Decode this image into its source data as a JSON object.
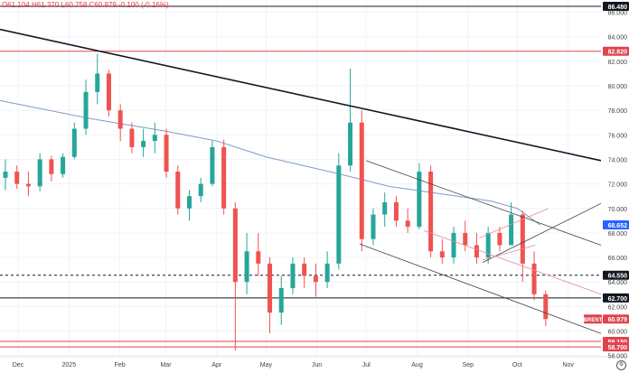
{
  "header": {
    "open_label": "O",
    "open": "61.104",
    "high_label": "H",
    "high": "61.370",
    "low_label": "L",
    "low": "60.758",
    "close_label": "C",
    "close": "60.979",
    "change": "-0.100 (-0.16%)"
  },
  "icons": {
    "settings": "gear-icon"
  },
  "colors": {
    "up": "#26a69a",
    "down": "#ef5350",
    "level_red": "#e0434f",
    "level_black": "#131722",
    "ma": "#7e9cc8",
    "trend_pink": "#e58a93",
    "channel": "#404040"
  },
  "chart_data": {
    "type": "candlestick",
    "symbol": "BRENT",
    "last_price": "60.979",
    "y_range": [
      57.9,
      87.0
    ],
    "y_ticks": [
      "58.000",
      "60.000",
      "62.000",
      "64.000",
      "66.000",
      "68.000",
      "70.000",
      "72.000",
      "74.000",
      "76.000",
      "78.000",
      "80.000",
      "82.000",
      "84.000",
      "86.000"
    ],
    "x_range": [
      "2024-11-20",
      "2025-11-21"
    ],
    "x_ticks": [
      {
        "label": "Dec",
        "date": "2024-12-01"
      },
      {
        "label": "2025",
        "date": "2025-01-01"
      },
      {
        "label": "Feb",
        "date": "2025-02-01"
      },
      {
        "label": "Mar",
        "date": "2025-03-01"
      },
      {
        "label": "Apr",
        "date": "2025-04-01"
      },
      {
        "label": "May",
        "date": "2025-05-01"
      },
      {
        "label": "Jun",
        "date": "2025-06-01"
      },
      {
        "label": "Jul",
        "date": "2025-07-01"
      },
      {
        "label": "Aug",
        "date": "2025-08-01"
      },
      {
        "label": "Sep",
        "date": "2025-09-01"
      },
      {
        "label": "Oct",
        "date": "2025-10-01"
      },
      {
        "label": "Nov",
        "date": "2025-11-01"
      }
    ],
    "grid": true,
    "candles": [
      [
        "2024-11-20",
        72.5,
        74,
        71.5,
        73
      ],
      [
        "2024-11-27",
        73,
        73.5,
        71.6,
        72
      ],
      [
        "2024-12-04",
        72,
        73,
        71,
        71.8
      ],
      [
        "2024-12-11",
        71.8,
        74.5,
        71.4,
        74
      ],
      [
        "2024-12-18",
        74,
        74.3,
        72.2,
        72.8
      ],
      [
        "2024-12-25",
        72.8,
        74.5,
        72.5,
        74.2
      ],
      [
        "2025-01-01",
        74.2,
        77,
        74,
        76.5
      ],
      [
        "2025-01-08",
        76.5,
        80.5,
        76,
        79.5
      ],
      [
        "2025-01-15",
        79.5,
        82.6,
        78.5,
        81
      ],
      [
        "2025-01-22",
        81,
        81.3,
        77.5,
        78
      ],
      [
        "2025-01-29",
        78,
        78.5,
        75.5,
        76.5
      ],
      [
        "2025-02-05",
        76.5,
        77,
        74.5,
        75
      ],
      [
        "2025-02-12",
        75,
        76.5,
        74.2,
        75.5
      ],
      [
        "2025-02-19",
        75.5,
        77,
        74.5,
        76
      ],
      [
        "2025-02-26",
        76,
        76.5,
        72.5,
        73
      ],
      [
        "2025-03-05",
        73,
        73.5,
        69.5,
        70
      ],
      [
        "2025-03-12",
        70,
        71.5,
        69,
        71
      ],
      [
        "2025-03-19",
        71,
        72.5,
        70.5,
        72
      ],
      [
        "2025-03-26",
        72,
        75.5,
        71.8,
        75
      ],
      [
        "2025-04-02",
        75,
        75.6,
        69.5,
        70
      ],
      [
        "2025-04-09",
        70,
        70.5,
        58.4,
        64
      ],
      [
        "2025-04-16",
        64,
        68,
        63,
        66.5
      ],
      [
        "2025-04-23",
        66.5,
        68,
        64.5,
        65.5
      ],
      [
        "2025-04-30",
        65.5,
        66,
        59.8,
        61.5
      ],
      [
        "2025-05-07",
        61.5,
        64.5,
        60.5,
        63.5
      ],
      [
        "2025-05-14",
        63.5,
        66,
        63,
        65.5
      ],
      [
        "2025-05-21",
        65.5,
        66,
        63.5,
        64.5
      ],
      [
        "2025-05-28",
        64.5,
        65.5,
        62.8,
        64
      ],
      [
        "2025-06-04",
        64,
        66.5,
        63.5,
        65.5
      ],
      [
        "2025-06-11",
        65.5,
        74.5,
        65,
        73.5
      ],
      [
        "2025-06-18",
        73.5,
        81.4,
        73,
        77
      ],
      [
        "2025-06-25",
        77,
        78,
        66.5,
        67.5
      ],
      [
        "2025-07-02",
        67.5,
        70,
        67,
        69.5
      ],
      [
        "2025-07-09",
        69.5,
        71.3,
        68.5,
        70.5
      ],
      [
        "2025-07-16",
        70.5,
        71,
        68.5,
        69
      ],
      [
        "2025-07-23",
        69,
        70,
        68,
        68.5
      ],
      [
        "2025-07-30",
        68.5,
        73.7,
        68.3,
        73
      ],
      [
        "2025-08-06",
        73,
        73.5,
        66,
        66.5
      ],
      [
        "2025-08-13",
        66.5,
        67.5,
        65.5,
        66
      ],
      [
        "2025-08-20",
        66,
        68.5,
        65.5,
        68
      ],
      [
        "2025-08-27",
        68,
        69,
        66.5,
        67
      ],
      [
        "2025-09-03",
        67,
        68,
        65.5,
        66
      ],
      [
        "2025-09-10",
        66,
        68.5,
        65.5,
        68
      ],
      [
        "2025-09-17",
        68,
        68.5,
        66.5,
        67
      ],
      [
        "2025-09-24",
        67,
        70.5,
        67,
        69.5
      ],
      [
        "2025-10-01",
        69.5,
        69.8,
        64,
        65.5
      ],
      [
        "2025-10-08",
        65.5,
        66.5,
        62.5,
        63
      ],
      [
        "2025-10-15",
        63,
        63.3,
        60.4,
        60.979
      ]
    ],
    "moving_average": {
      "label": "68.652",
      "points": [
        [
          "2024-11-20",
          78.8
        ],
        [
          "2025-01-15",
          77.3
        ],
        [
          "2025-03-01",
          76.3
        ],
        [
          "2025-04-01",
          75.5
        ],
        [
          "2025-05-01",
          74.2
        ],
        [
          "2025-06-15",
          72.8
        ],
        [
          "2025-07-15",
          71.8
        ],
        [
          "2025-08-15",
          71.2
        ],
        [
          "2025-09-15",
          70.6
        ],
        [
          "2025-10-01",
          70.0
        ],
        [
          "2025-10-15",
          68.652
        ]
      ]
    },
    "horizontal_levels": [
      {
        "price": 86.48,
        "label": "86.480",
        "style": "solid",
        "color": "black"
      },
      {
        "price": 82.82,
        "label": "82.820",
        "style": "solid",
        "color": "red"
      },
      {
        "price": 64.55,
        "label": "64.550",
        "style": "dashed",
        "color": "black"
      },
      {
        "price": 62.7,
        "label": "62.700",
        "style": "solid",
        "color": "black"
      },
      {
        "price": 59.15,
        "label": "59.150",
        "style": "solid",
        "color": "red"
      },
      {
        "price": 58.7,
        "label": "58.700",
        "style": "solid",
        "color": "red"
      }
    ],
    "trend_lines": [
      {
        "from": [
          "2024-11-20",
          84.6
        ],
        "to": [
          "2025-11-21",
          73.9
        ],
        "color": "black",
        "width": 1.6
      },
      {
        "from": [
          "2025-07-01",
          73.9
        ],
        "to": [
          "2025-11-21",
          67.0
        ],
        "color": "channel",
        "width": 0.8
      },
      {
        "from": [
          "2025-06-27",
          67.1
        ],
        "to": [
          "2025-11-21",
          59.8
        ],
        "color": "channel",
        "width": 0.8
      },
      {
        "from": [
          "2025-09-10",
          65.6
        ],
        "to": [
          "2025-11-21",
          70.4
        ],
        "color": "channel",
        "width": 0.8
      },
      {
        "from": [
          "2025-08-05",
          68.2
        ],
        "to": [
          "2025-11-21",
          63.0
        ],
        "color": "trend_pink",
        "width": 0.8
      },
      {
        "from": [
          "2025-09-08",
          67.6
        ],
        "to": [
          "2025-10-20",
          70.0
        ],
        "color": "trend_pink",
        "width": 0.8
      },
      {
        "from": [
          "2025-09-10",
          65.8
        ],
        "to": [
          "2025-10-12",
          67.0
        ],
        "color": "trend_pink",
        "width": 0.8
      }
    ]
  }
}
